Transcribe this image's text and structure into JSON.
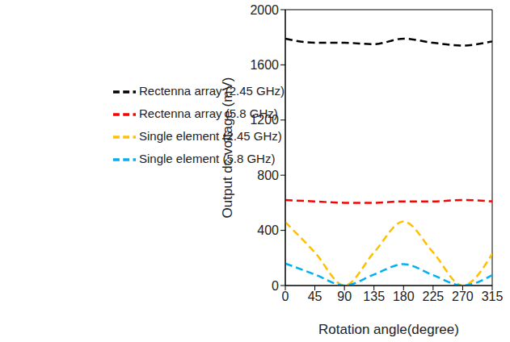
{
  "chart_data": {
    "type": "line",
    "x_label": "Rotation angle(degree)",
    "y_label": "Output dc voltage (mV)",
    "x": [
      0,
      45,
      90,
      135,
      180,
      225,
      270,
      315
    ],
    "xlim": [
      0,
      315
    ],
    "xticks": [
      0,
      45,
      90,
      135,
      180,
      225,
      270,
      315
    ],
    "ylim": [
      0,
      2000
    ],
    "yticks": [
      0,
      400,
      800,
      1200,
      1600,
      2000
    ],
    "grid": false,
    "legend": "upper left",
    "line_style": "dashed",
    "series": [
      {
        "name": "Single element (2.45 GHz)",
        "color": "#ffc000",
        "values": [
          460,
          240,
          0,
          240,
          465,
          240,
          0,
          230
        ]
      },
      {
        "name": "Single element (5.8 GHz)",
        "color": "#00b0f0",
        "values": [
          160,
          80,
          0,
          80,
          155,
          75,
          0,
          75
        ]
      },
      {
        "name": "Rectenna array (2.45 GHz)",
        "color": "#000000",
        "values": [
          1790,
          1760,
          1760,
          1750,
          1790,
          1760,
          1740,
          1770
        ]
      },
      {
        "name": "Rectenna array (5.8 GHz)",
        "color": "#ff0000",
        "values": [
          620,
          610,
          600,
          600,
          610,
          610,
          620,
          610
        ]
      }
    ]
  }
}
